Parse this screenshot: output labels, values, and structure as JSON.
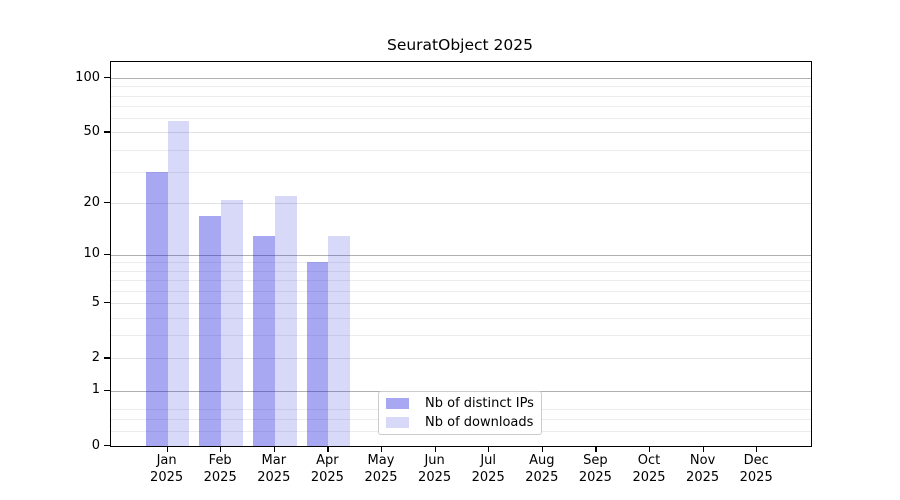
{
  "title": "SeuratObject 2025",
  "chart_data": {
    "type": "bar",
    "title": "SeuratObject 2025",
    "scale": "log1p",
    "grid": true,
    "categories": [
      "Jan",
      "Feb",
      "Mar",
      "Apr",
      "May",
      "Jun",
      "Jul",
      "Aug",
      "Sep",
      "Oct",
      "Nov",
      "Dec"
    ],
    "x_year_label": "2025",
    "series": [
      {
        "name": "Nb of distinct IPs",
        "color": "rgba(10,10,219,0.36)",
        "values": [
          30,
          17,
          13,
          9,
          0,
          0,
          0,
          0,
          0,
          0,
          0,
          0
        ]
      },
      {
        "name": "Nb of downloads",
        "color": "rgba(10,10,219,0.16)",
        "values": [
          58,
          21,
          22,
          13,
          0,
          0,
          0,
          0,
          0,
          0,
          0,
          0
        ]
      }
    ],
    "y_ticks": [
      0,
      1,
      2,
      5,
      10,
      20,
      50,
      100
    ],
    "y_decade_gridlines": [
      1,
      10,
      100
    ],
    "y_minor_gridlines": [
      0.2,
      0.4,
      0.6,
      3,
      4,
      6,
      7,
      8,
      9,
      30,
      40,
      60,
      70,
      80,
      90
    ],
    "ylim": [
      0,
      122
    ],
    "legend_position": "lower-center",
    "style": {
      "background": "#ffffff",
      "axis_color": "#000000",
      "text_color": "#000000",
      "grid_decade": "#b0b0b0",
      "grid_mid": "#e2e2e2",
      "grid_minor": "#ececec",
      "legend_border": "#cccccc"
    }
  }
}
